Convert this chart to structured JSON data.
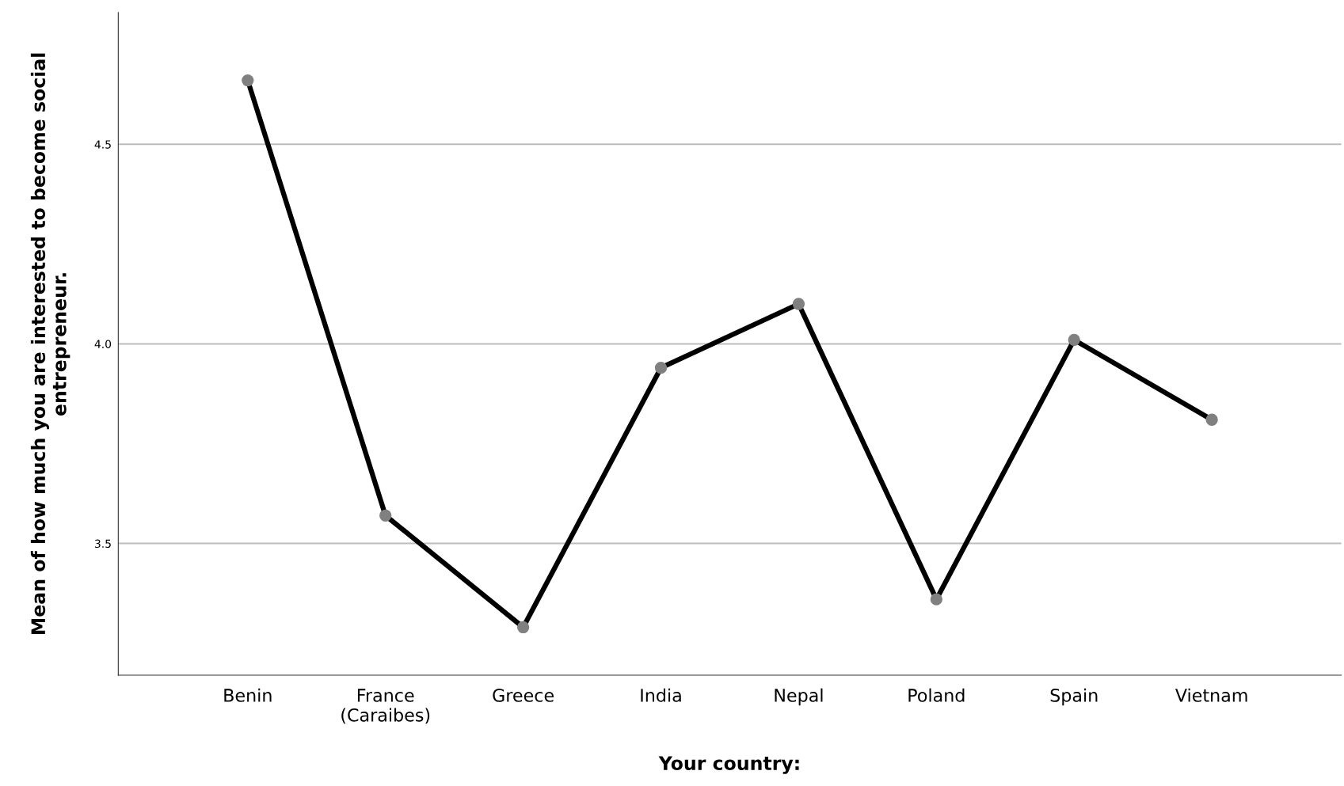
{
  "chart_data": {
    "type": "line",
    "xlabel": "Your country:",
    "ylabel": "Mean of how much you are interested to become social entrepreneur.",
    "categories": [
      "Benin",
      "France\n(Caraibes)",
      "Greece",
      "India",
      "Nepal",
      "Poland",
      "Spain",
      "Vietnam"
    ],
    "series": [
      {
        "color": "#000000",
        "values": [
          4.66,
          3.57,
          3.29,
          3.94,
          4.1,
          3.36,
          4.01,
          3.81
        ]
      }
    ],
    "ylim": [
      3.17,
      4.83
    ],
    "yticks": [
      3.5,
      {
        "value": 4.0,
        "label": "4.0"
      },
      4.5
    ],
    "grid": "y",
    "marker": "circle",
    "line_style": "solid",
    "legend": false
  }
}
